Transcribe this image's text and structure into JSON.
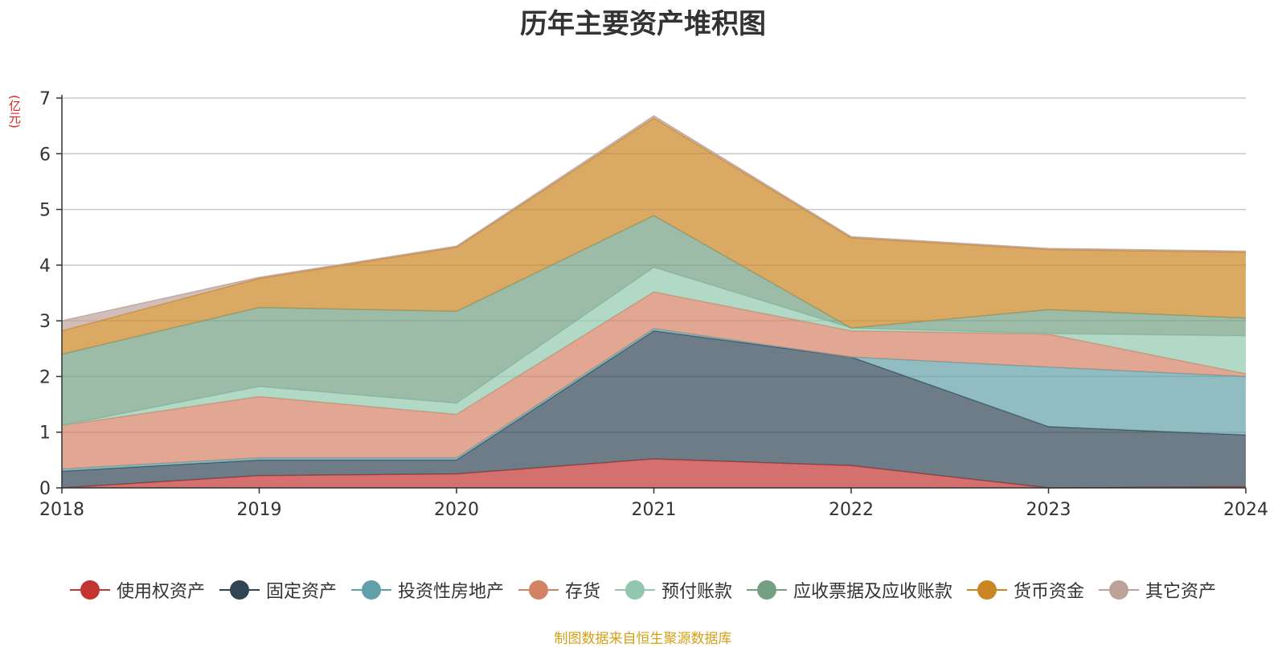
{
  "title": "历年主要资产堆积图",
  "unit_label": "(亿元)",
  "source_text": "制图数据来自恒生聚源数据库",
  "chart_data": {
    "type": "area",
    "stacked": true,
    "title": "历年主要资产堆积图",
    "ylabel": "(亿元)",
    "x": [
      "2018",
      "2019",
      "2020",
      "2021",
      "2022",
      "2023",
      "2024"
    ],
    "ylim": [
      0,
      7
    ],
    "yticks": [
      0,
      1,
      2,
      3,
      4,
      5,
      6,
      7
    ],
    "grid": true,
    "legend_position": "bottom",
    "series": [
      {
        "name": "使用权资产",
        "color": "#c23531",
        "values": [
          0,
          0.22,
          0.25,
          0.52,
          0.4,
          0,
          0.02
        ]
      },
      {
        "name": "固定资产",
        "color": "#2f4554",
        "values": [
          0.3,
          0.28,
          0.25,
          2.3,
          1.95,
          1.1,
          0.93
        ]
      },
      {
        "name": "投资性房地产",
        "color": "#61a0a8",
        "values": [
          0.04,
          0.04,
          0.04,
          0.04,
          0,
          1.07,
          1.05
        ]
      },
      {
        "name": "存货",
        "color": "#d48265",
        "values": [
          0.78,
          1.1,
          0.78,
          0.66,
          0.47,
          0.59,
          0.05
        ]
      },
      {
        "name": "预付账款",
        "color": "#91c7ae",
        "values": [
          0,
          0.18,
          0.2,
          0.44,
          0.05,
          0.01,
          0.68
        ]
      },
      {
        "name": "应收票据及应收账款",
        "color": "#749f83",
        "values": [
          1.28,
          1.42,
          1.65,
          0.93,
          0,
          0.43,
          0.32
        ]
      },
      {
        "name": "货币资金",
        "color": "#ca8622",
        "values": [
          0.42,
          0.52,
          1.15,
          1.75,
          1.62,
          1.08,
          1.18
        ]
      },
      {
        "name": "其它资产",
        "color": "#bda29a",
        "values": [
          0.18,
          0.02,
          0.02,
          0.04,
          0.02,
          0.02,
          0.02
        ]
      }
    ]
  }
}
